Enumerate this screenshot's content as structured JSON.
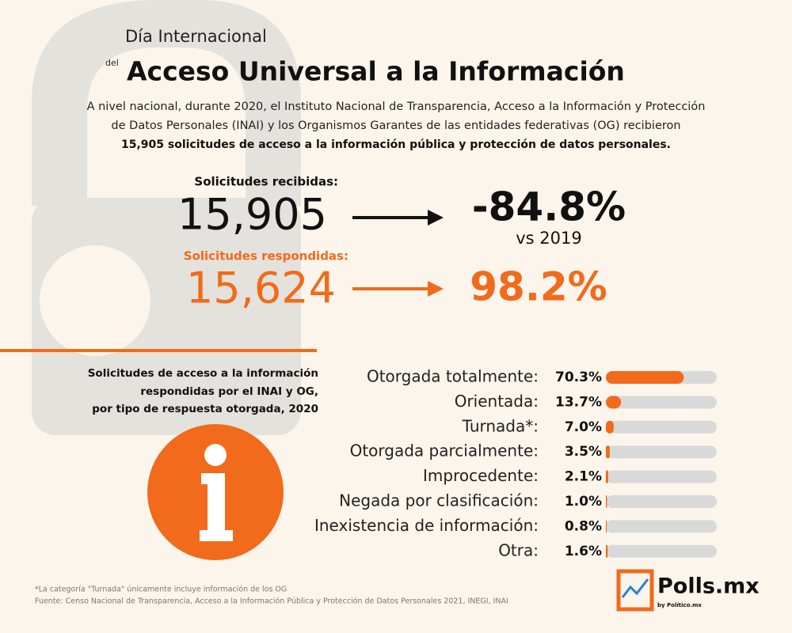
{
  "header": {
    "pretitle": "Día Internacional",
    "connector": "del",
    "title": "Acceso Universal a la Información"
  },
  "intro": {
    "lines": [
      "A nivel nacional, durante 2020, el Instituto Nacional de Transparencia, Acceso a la Información y Protección",
      "de Datos Personales (INAI) y los Organismos Garantes de las entidades federativas (OG) recibieron"
    ],
    "bold_line": "15,905 solicitudes de acceso a la información pública y protección de datos personales."
  },
  "stats": {
    "received_label": "Solicitudes recibidas:",
    "received": "15,905",
    "change": "-84.8%",
    "change_note": "vs 2019",
    "answered_label": "Solicitudes respondidas:",
    "answered": "15,624",
    "answered_share": "98.2%"
  },
  "chart_data": {
    "type": "bar",
    "orientation": "horizontal",
    "title_lines": [
      "Solicitudes de acceso a la información",
      "respondidas por el INAI y OG,",
      "por tipo de respuesta otorgada, 2020"
    ],
    "categories": [
      "Otorgada totalmente:",
      "Orientada:",
      "Turnada*:",
      "Otorgada parcialmente:",
      "Improcedente:",
      "Negada por clasificación:",
      "Inexistencia de información:",
      "Otra:"
    ],
    "values": [
      70.3,
      13.7,
      7.0,
      3.5,
      2.1,
      1.0,
      0.8,
      1.6
    ],
    "value_labels": [
      "70.3%",
      "13.7%",
      "7.0%",
      "3.5%",
      "2.1%",
      "1.0%",
      "0.8%",
      "1.6%"
    ],
    "xlim": [
      0,
      100
    ],
    "color": "#f26a1b",
    "track_color": "#d9d9d9"
  },
  "footnotes": [
    "*La categoría \"Turnada\" únicamente incluye información de los OG",
    "Fuente: Censo Nacional de Transparencia, Acceso a la Información Pública y Protección de Datos Personales 2021, INEGI, INAI"
  ],
  "logo": {
    "name": "Polls.mx",
    "by": "by Político.mx"
  }
}
